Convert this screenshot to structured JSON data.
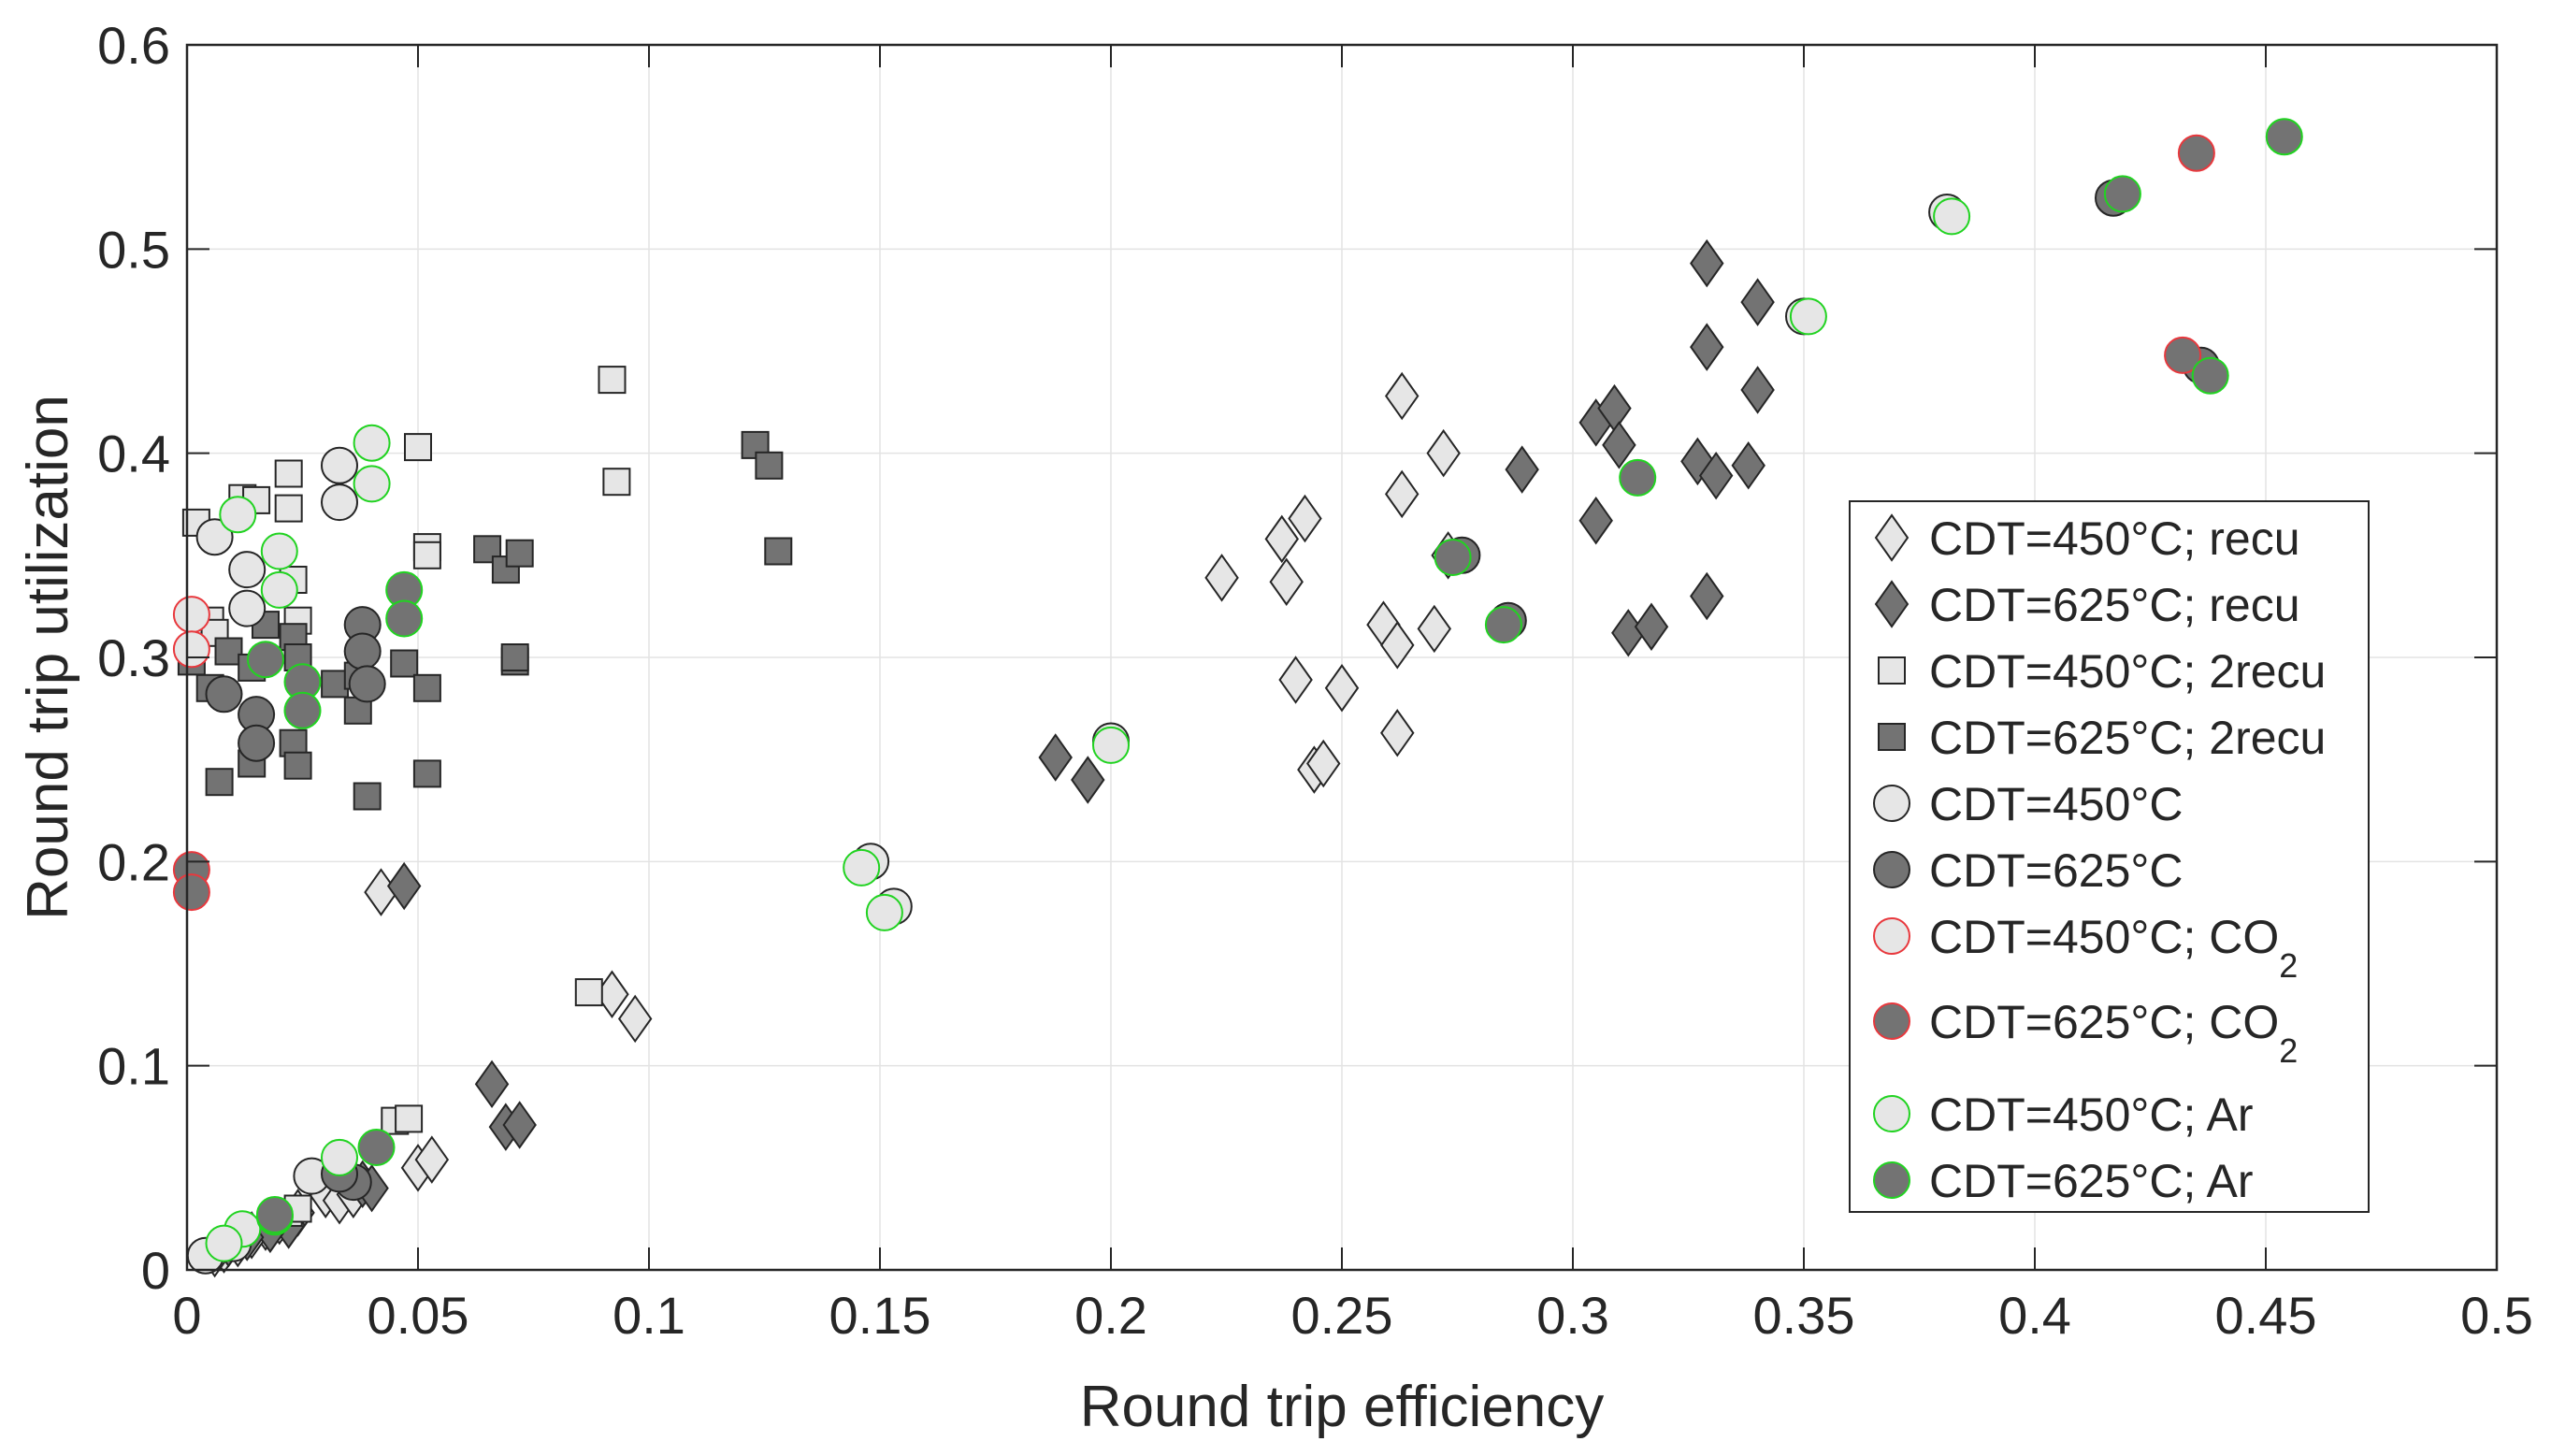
{
  "chart_data": {
    "type": "scatter",
    "title": "",
    "xlabel": "Round trip efficiency",
    "ylabel": "Round trip utilization",
    "xlim": [
      0,
      0.5
    ],
    "ylim": [
      0,
      0.6
    ],
    "grid": true,
    "legend_position": "right",
    "x_ticks": [
      0,
      0.05,
      0.1,
      0.15,
      0.2,
      0.25,
      0.3,
      0.35,
      0.4,
      0.45,
      0.5
    ],
    "x_tick_labels": [
      "0",
      "0.05",
      "0.1",
      "0.15",
      "0.2",
      "0.25",
      "0.3",
      "0.35",
      "0.4",
      "0.45",
      "0.5"
    ],
    "y_ticks": [
      0,
      0.1,
      0.2,
      0.3,
      0.4,
      0.5,
      0.6
    ],
    "y_tick_labels": [
      "0",
      "0.1",
      "0.2",
      "0.3",
      "0.4",
      "0.5",
      "0.6"
    ],
    "colors": {
      "light_fill": "#e6e6e6",
      "dark_fill": "#737373",
      "edge": "#262626",
      "co2_edge": "#e8383d",
      "ar_edge": "#21d321",
      "axis": "#262626",
      "grid": "#e3e3e3"
    },
    "series": [
      {
        "name": "CDT=450°C; recu",
        "name_main": "CDT=450°C; recu",
        "name_sub": "",
        "marker": "diamond",
        "fill": "light",
        "edge": "dark",
        "points": [
          [
            0.03,
            0.037
          ],
          [
            0.033,
            0.034
          ],
          [
            0.036,
            0.037
          ],
          [
            0.024,
            0.028
          ],
          [
            0.02,
            0.024
          ],
          [
            0.017,
            0.021
          ],
          [
            0.014,
            0.017
          ],
          [
            0.011,
            0.013
          ],
          [
            0.008,
            0.01
          ],
          [
            0.006,
            0.008
          ],
          [
            0.042,
            0.185
          ],
          [
            0.05,
            0.05
          ],
          [
            0.053,
            0.054
          ],
          [
            0.092,
            0.135
          ],
          [
            0.097,
            0.123
          ],
          [
            0.224,
            0.339
          ],
          [
            0.237,
            0.358
          ],
          [
            0.238,
            0.337
          ],
          [
            0.242,
            0.368
          ],
          [
            0.24,
            0.289
          ],
          [
            0.25,
            0.285
          ],
          [
            0.244,
            0.245
          ],
          [
            0.246,
            0.248
          ],
          [
            0.259,
            0.316
          ],
          [
            0.262,
            0.306
          ],
          [
            0.262,
            0.263
          ],
          [
            0.263,
            0.428
          ],
          [
            0.263,
            0.38
          ],
          [
            0.27,
            0.314
          ],
          [
            0.272,
            0.4
          ],
          [
            0.273,
            0.35
          ]
        ]
      },
      {
        "name": "CDT=625°C; recu",
        "name_main": "CDT=625°C; recu",
        "name_sub": "",
        "marker": "diamond",
        "fill": "dark",
        "edge": "dark",
        "points": [
          [
            0.047,
            0.188
          ],
          [
            0.066,
            0.091
          ],
          [
            0.069,
            0.07
          ],
          [
            0.072,
            0.071
          ],
          [
            0.038,
            0.042
          ],
          [
            0.04,
            0.04
          ],
          [
            0.022,
            0.022
          ],
          [
            0.018,
            0.02
          ],
          [
            0.013,
            0.016
          ],
          [
            0.009,
            0.013
          ],
          [
            0.188,
            0.251
          ],
          [
            0.195,
            0.24
          ],
          [
            0.289,
            0.392
          ],
          [
            0.305,
            0.367
          ],
          [
            0.305,
            0.415
          ],
          [
            0.309,
            0.422
          ],
          [
            0.31,
            0.404
          ],
          [
            0.312,
            0.312
          ],
          [
            0.317,
            0.315
          ],
          [
            0.327,
            0.396
          ],
          [
            0.329,
            0.493
          ],
          [
            0.329,
            0.452
          ],
          [
            0.329,
            0.33
          ],
          [
            0.331,
            0.389
          ],
          [
            0.338,
            0.394
          ],
          [
            0.34,
            0.474
          ],
          [
            0.34,
            0.431
          ]
        ]
      },
      {
        "name": "CDT=450°C; 2recu",
        "name_main": "CDT=450°C; 2recu",
        "name_sub": "",
        "marker": "square",
        "fill": "light",
        "edge": "dark",
        "points": [
          [
            0.002,
            0.366
          ],
          [
            0.005,
            0.318
          ],
          [
            0.006,
            0.312
          ],
          [
            0.012,
            0.378
          ],
          [
            0.015,
            0.377
          ],
          [
            0.022,
            0.39
          ],
          [
            0.022,
            0.373
          ],
          [
            0.023,
            0.338
          ],
          [
            0.024,
            0.318
          ],
          [
            0.05,
            0.403
          ],
          [
            0.052,
            0.354
          ],
          [
            0.052,
            0.35
          ],
          [
            0.092,
            0.436
          ],
          [
            0.093,
            0.386
          ],
          [
            0.087,
            0.136
          ],
          [
            0.045,
            0.073
          ],
          [
            0.048,
            0.074
          ],
          [
            0.022,
            0.028
          ],
          [
            0.024,
            0.03
          ]
        ]
      },
      {
        "name": "CDT=625°C; 2recu",
        "name_main": "CDT=625°C; 2recu",
        "name_sub": "",
        "marker": "square",
        "fill": "dark",
        "edge": "dark",
        "points": [
          [
            0.001,
            0.298
          ],
          [
            0.005,
            0.285
          ],
          [
            0.007,
            0.239
          ],
          [
            0.009,
            0.303
          ],
          [
            0.014,
            0.248
          ],
          [
            0.014,
            0.295
          ],
          [
            0.017,
            0.316
          ],
          [
            0.023,
            0.258
          ],
          [
            0.023,
            0.31
          ],
          [
            0.024,
            0.247
          ],
          [
            0.024,
            0.3
          ],
          [
            0.032,
            0.287
          ],
          [
            0.037,
            0.291
          ],
          [
            0.037,
            0.274
          ],
          [
            0.039,
            0.232
          ],
          [
            0.047,
            0.297
          ],
          [
            0.052,
            0.285
          ],
          [
            0.052,
            0.243
          ],
          [
            0.065,
            0.353
          ],
          [
            0.069,
            0.343
          ],
          [
            0.072,
            0.351
          ],
          [
            0.071,
            0.298
          ],
          [
            0.071,
            0.3
          ],
          [
            0.123,
            0.404
          ],
          [
            0.126,
            0.394
          ],
          [
            0.128,
            0.352
          ]
        ]
      },
      {
        "name": "CDT=450°C",
        "name_main": "CDT=450°C",
        "name_sub": "",
        "marker": "circle",
        "fill": "light",
        "edge": "dark",
        "points": [
          [
            0.004,
            0.007
          ],
          [
            0.006,
            0.359
          ],
          [
            0.013,
            0.343
          ],
          [
            0.013,
            0.324
          ],
          [
            0.033,
            0.394
          ],
          [
            0.033,
            0.376
          ],
          [
            0.027,
            0.046
          ],
          [
            0.01,
            0.013
          ],
          [
            0.148,
            0.2
          ],
          [
            0.153,
            0.178
          ],
          [
            0.2,
            0.259
          ],
          [
            0.35,
            0.467
          ],
          [
            0.381,
            0.518
          ]
        ]
      },
      {
        "name": "CDT=625°C",
        "name_main": "CDT=625°C",
        "name_sub": "",
        "marker": "circle",
        "fill": "dark",
        "edge": "dark",
        "points": [
          [
            0.008,
            0.282
          ],
          [
            0.015,
            0.272
          ],
          [
            0.015,
            0.258
          ],
          [
            0.038,
            0.316
          ],
          [
            0.038,
            0.303
          ],
          [
            0.039,
            0.287
          ],
          [
            0.036,
            0.043
          ],
          [
            0.033,
            0.047
          ],
          [
            0.276,
            0.35
          ],
          [
            0.286,
            0.318
          ],
          [
            0.417,
            0.525
          ],
          [
            0.436,
            0.443
          ]
        ]
      },
      {
        "name": "CDT=450°C; CO2",
        "name_main": "CDT=450°C; CO",
        "name_sub": "2",
        "marker": "circle",
        "fill": "light",
        "edge": "co2",
        "points": [
          [
            0.001,
            0.321
          ],
          [
            0.001,
            0.304
          ]
        ]
      },
      {
        "name": "CDT=625°C; CO2",
        "name_main": "CDT=625°C; CO",
        "name_sub": "2",
        "marker": "circle",
        "fill": "dark",
        "edge": "co2",
        "points": [
          [
            0.001,
            0.196
          ],
          [
            0.001,
            0.185
          ],
          [
            0.432,
            0.448
          ],
          [
            0.435,
            0.547
          ]
        ]
      },
      {
        "name": "CDT=450°C; Ar",
        "name_main": "CDT=450°C; Ar",
        "name_sub": "",
        "marker": "circle",
        "fill": "light",
        "edge": "ar",
        "points": [
          [
            0.011,
            0.37
          ],
          [
            0.02,
            0.352
          ],
          [
            0.02,
            0.333
          ],
          [
            0.04,
            0.405
          ],
          [
            0.04,
            0.385
          ],
          [
            0.033,
            0.055
          ],
          [
            0.012,
            0.02
          ],
          [
            0.008,
            0.013
          ],
          [
            0.146,
            0.197
          ],
          [
            0.151,
            0.175
          ],
          [
            0.2,
            0.257
          ],
          [
            0.351,
            0.467
          ],
          [
            0.382,
            0.516
          ]
        ]
      },
      {
        "name": "CDT=625°C; Ar",
        "name_main": "CDT=625°C; Ar",
        "name_sub": "",
        "marker": "circle",
        "fill": "dark",
        "edge": "ar",
        "points": [
          [
            0.017,
            0.299
          ],
          [
            0.025,
            0.288
          ],
          [
            0.025,
            0.274
          ],
          [
            0.047,
            0.333
          ],
          [
            0.047,
            0.319
          ],
          [
            0.041,
            0.06
          ],
          [
            0.019,
            0.026
          ],
          [
            0.019,
            0.027
          ],
          [
            0.274,
            0.349
          ],
          [
            0.285,
            0.316
          ],
          [
            0.314,
            0.388
          ],
          [
            0.419,
            0.527
          ],
          [
            0.438,
            0.438
          ],
          [
            0.454,
            0.555
          ]
        ]
      }
    ]
  }
}
